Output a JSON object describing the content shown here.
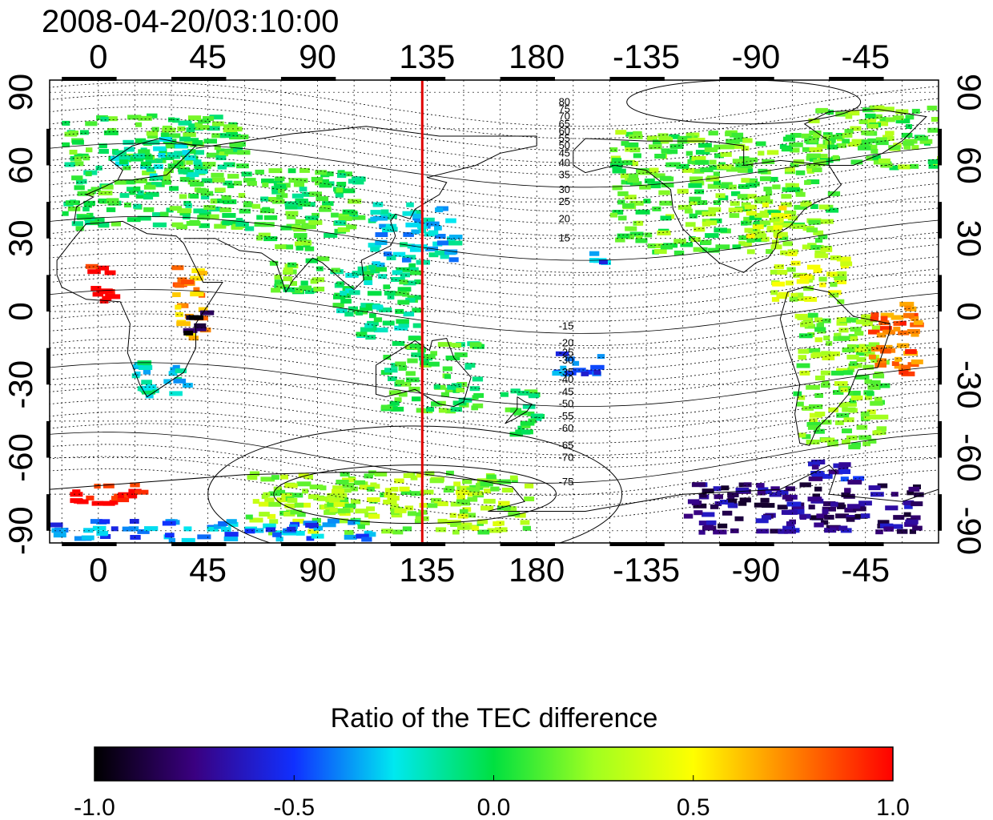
{
  "title": "2008-04-20/03:10:00",
  "map": {
    "lon_ticks": [
      "0",
      "45",
      "90",
      "135",
      "180",
      "-135",
      "-90",
      "-45"
    ],
    "lon_tick_values": [
      0,
      45,
      90,
      135,
      180,
      225,
      270,
      315
    ],
    "lat_ticks": [
      "90",
      "60",
      "30",
      "0",
      "-30",
      "-60",
      "-90"
    ],
    "lat_tick_values": [
      90,
      60,
      30,
      0,
      -30,
      -60,
      -90
    ],
    "lon_range": [
      -20,
      345
    ],
    "lat_range": [
      -95,
      95
    ],
    "grid": "dotted",
    "meridian_marker": {
      "lon": 133,
      "color": "#e00000"
    },
    "mag_labels_north": [
      "80",
      "75",
      "70",
      "65",
      "60",
      "55",
      "50",
      "45",
      "40",
      "35",
      "30",
      "25",
      "20",
      "15"
    ],
    "mag_labels_south": [
      "-15",
      "-20",
      "-25",
      "-30",
      "-35",
      "-40",
      "-45",
      "-50",
      "-55",
      "-60",
      "-65",
      "-70",
      "-75"
    ],
    "mag_label_lats_north": [
      86,
      83,
      80,
      77,
      74,
      71,
      68,
      65,
      61,
      56,
      50,
      45,
      38,
      30
    ],
    "mag_label_lats_south": [
      -6,
      -13,
      -17,
      -20,
      -25,
      -28,
      -33,
      -38,
      -43,
      -48,
      -55,
      -60,
      -70
    ],
    "mag_label_lon": 189,
    "data_regions": [
      {
        "name": "europe",
        "lon": [
          -15,
          60
        ],
        "lat": [
          35,
          82
        ],
        "v": 0.05
      },
      {
        "name": "scandinavia",
        "lon": [
          5,
          40
        ],
        "lat": [
          55,
          72
        ],
        "v": -0.1
      },
      {
        "name": "west-africa-red",
        "lon": [
          -7,
          5
        ],
        "lat": [
          5,
          20
        ],
        "v": 1.0
      },
      {
        "name": "east-africa",
        "lon": [
          30,
          42
        ],
        "lat": [
          -10,
          20
        ],
        "v": 0.7
      },
      {
        "name": "east-africa-dark",
        "lon": [
          33,
          42
        ],
        "lat": [
          -8,
          2
        ],
        "v": -0.95
      },
      {
        "name": "south-africa",
        "lon": [
          13,
          35
        ],
        "lat": [
          -35,
          -18
        ],
        "v": -0.2
      },
      {
        "name": "central-asia",
        "lon": [
          60,
          105
        ],
        "lat": [
          30,
          60
        ],
        "v": 0.05
      },
      {
        "name": "india",
        "lon": [
          70,
          90
        ],
        "lat": [
          8,
          30
        ],
        "v": 0.1
      },
      {
        "name": "east-asia",
        "lon": [
          110,
          145
        ],
        "lat": [
          20,
          45
        ],
        "v": -0.25
      },
      {
        "name": "se-asia",
        "lon": [
          95,
          130
        ],
        "lat": [
          -10,
          20
        ],
        "v": -0.05
      },
      {
        "name": "australia",
        "lon": [
          115,
          155
        ],
        "lat": [
          -40,
          -12
        ],
        "v": 0.05
      },
      {
        "name": "nz",
        "lon": [
          165,
          180
        ],
        "lat": [
          -50,
          -30
        ],
        "v": 0.0
      },
      {
        "name": "pacific-blue",
        "lon": [
          185,
          205
        ],
        "lat": [
          -25,
          -15
        ],
        "v": -0.45
      },
      {
        "name": "hawaii",
        "lon": [
          200,
          208
        ],
        "lat": [
          17,
          25
        ],
        "v": -0.4
      },
      {
        "name": "north-america",
        "lon": [
          210,
          300
        ],
        "lat": [
          25,
          75
        ],
        "v": 0.15
      },
      {
        "name": "us-east-yellow",
        "lon": [
          265,
          280
        ],
        "lat": [
          30,
          45
        ],
        "v": 0.4
      },
      {
        "name": "greenland",
        "lon": [
          290,
          345
        ],
        "lat": [
          60,
          85
        ],
        "v": 0.15
      },
      {
        "name": "caribbean",
        "lon": [
          275,
          305
        ],
        "lat": [
          5,
          25
        ],
        "v": 0.35
      },
      {
        "name": "south-america",
        "lon": [
          285,
          320
        ],
        "lat": [
          -55,
          0
        ],
        "v": 0.2
      },
      {
        "name": "brazil-red",
        "lon": [
          315,
          335
        ],
        "lat": [
          -25,
          5
        ],
        "v": 0.8
      },
      {
        "name": "antarctica-east",
        "lon": [
          60,
          175
        ],
        "lat": [
          -90,
          -65
        ],
        "v": 0.25
      },
      {
        "name": "antarctica-west",
        "lon": [
          240,
          335
        ],
        "lat": [
          -90,
          -70
        ],
        "v": -0.75
      },
      {
        "name": "antarctic-peninsula",
        "lon": [
          290,
          310
        ],
        "lat": [
          -70,
          -60
        ],
        "v": -0.6
      },
      {
        "name": "south-atlantic-red",
        "lon": [
          -15,
          20
        ],
        "lat": [
          -78,
          -70
        ],
        "v": 1.0
      },
      {
        "name": "south-pole-strip",
        "lon": [
          -20,
          110
        ],
        "lat": [
          -93,
          -85
        ],
        "v": -0.4
      }
    ]
  },
  "colorbar": {
    "title": "Ratio of the TEC difference",
    "ticks": [
      "-1.0",
      "-0.5",
      "0.0",
      "0.5",
      "1.0"
    ],
    "tick_values": [
      -1.0,
      -0.5,
      0.0,
      0.5,
      1.0
    ],
    "range": [
      -1.0,
      1.0
    ],
    "colormap_stops": [
      "#000000",
      "#3a0080",
      "#1030ff",
      "#00e8f0",
      "#00e040",
      "#a0ff20",
      "#ffff00",
      "#ff8000",
      "#ff0000"
    ]
  }
}
